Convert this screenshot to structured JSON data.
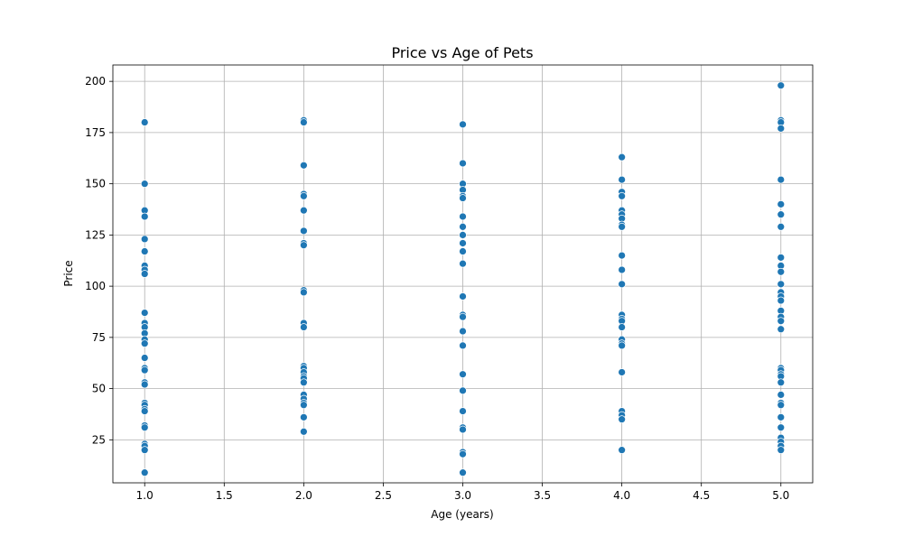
{
  "chart_data": {
    "type": "scatter",
    "title": "Price vs Age of Pets",
    "xlabel": "Age (years)",
    "ylabel": "Price",
    "xlim": [
      0.8,
      5.2
    ],
    "ylim": [
      4,
      208
    ],
    "xticks": [
      1.0,
      1.5,
      2.0,
      2.5,
      3.0,
      3.5,
      4.0,
      4.5,
      5.0
    ],
    "xtick_labels": [
      "1.0",
      "1.5",
      "2.0",
      "2.5",
      "3.0",
      "3.5",
      "4.0",
      "4.5",
      "5.0"
    ],
    "yticks": [
      25,
      50,
      75,
      100,
      125,
      150,
      175,
      200
    ],
    "ytick_labels": [
      "25",
      "50",
      "75",
      "100",
      "125",
      "150",
      "175",
      "200"
    ],
    "grid": true,
    "marker_color": "#1f77b4",
    "points": [
      {
        "x": 1,
        "y": 180
      },
      {
        "x": 1,
        "y": 150
      },
      {
        "x": 1,
        "y": 137
      },
      {
        "x": 1,
        "y": 134
      },
      {
        "x": 1,
        "y": 123
      },
      {
        "x": 1,
        "y": 117
      },
      {
        "x": 1,
        "y": 110
      },
      {
        "x": 1,
        "y": 108
      },
      {
        "x": 1,
        "y": 106
      },
      {
        "x": 1,
        "y": 87
      },
      {
        "x": 1,
        "y": 82
      },
      {
        "x": 1,
        "y": 80
      },
      {
        "x": 1,
        "y": 77
      },
      {
        "x": 1,
        "y": 74
      },
      {
        "x": 1,
        "y": 72
      },
      {
        "x": 1,
        "y": 65
      },
      {
        "x": 1,
        "y": 60
      },
      {
        "x": 1,
        "y": 59
      },
      {
        "x": 1,
        "y": 53
      },
      {
        "x": 1,
        "y": 52
      },
      {
        "x": 1,
        "y": 43
      },
      {
        "x": 1,
        "y": 42
      },
      {
        "x": 1,
        "y": 40
      },
      {
        "x": 1,
        "y": 39
      },
      {
        "x": 1,
        "y": 32
      },
      {
        "x": 1,
        "y": 31
      },
      {
        "x": 1,
        "y": 23
      },
      {
        "x": 1,
        "y": 22
      },
      {
        "x": 1,
        "y": 20
      },
      {
        "x": 1,
        "y": 9
      },
      {
        "x": 2,
        "y": 181
      },
      {
        "x": 2,
        "y": 180
      },
      {
        "x": 2,
        "y": 159
      },
      {
        "x": 2,
        "y": 145
      },
      {
        "x": 2,
        "y": 144
      },
      {
        "x": 2,
        "y": 137
      },
      {
        "x": 2,
        "y": 127
      },
      {
        "x": 2,
        "y": 121
      },
      {
        "x": 2,
        "y": 120
      },
      {
        "x": 2,
        "y": 98
      },
      {
        "x": 2,
        "y": 97
      },
      {
        "x": 2,
        "y": 82
      },
      {
        "x": 2,
        "y": 80
      },
      {
        "x": 2,
        "y": 61
      },
      {
        "x": 2,
        "y": 60
      },
      {
        "x": 2,
        "y": 58
      },
      {
        "x": 2,
        "y": 56
      },
      {
        "x": 2,
        "y": 55
      },
      {
        "x": 2,
        "y": 53
      },
      {
        "x": 2,
        "y": 47
      },
      {
        "x": 2,
        "y": 45
      },
      {
        "x": 2,
        "y": 43
      },
      {
        "x": 2,
        "y": 42
      },
      {
        "x": 2,
        "y": 36
      },
      {
        "x": 2,
        "y": 29
      },
      {
        "x": 3,
        "y": 179
      },
      {
        "x": 3,
        "y": 160
      },
      {
        "x": 3,
        "y": 150
      },
      {
        "x": 3,
        "y": 147
      },
      {
        "x": 3,
        "y": 144
      },
      {
        "x": 3,
        "y": 143
      },
      {
        "x": 3,
        "y": 134
      },
      {
        "x": 3,
        "y": 129
      },
      {
        "x": 3,
        "y": 125
      },
      {
        "x": 3,
        "y": 121
      },
      {
        "x": 3,
        "y": 117
      },
      {
        "x": 3,
        "y": 111
      },
      {
        "x": 3,
        "y": 95
      },
      {
        "x": 3,
        "y": 86
      },
      {
        "x": 3,
        "y": 85
      },
      {
        "x": 3,
        "y": 78
      },
      {
        "x": 3,
        "y": 71
      },
      {
        "x": 3,
        "y": 57
      },
      {
        "x": 3,
        "y": 49
      },
      {
        "x": 3,
        "y": 39
      },
      {
        "x": 3,
        "y": 31
      },
      {
        "x": 3,
        "y": 30
      },
      {
        "x": 3,
        "y": 19
      },
      {
        "x": 3,
        "y": 18
      },
      {
        "x": 3,
        "y": 9
      },
      {
        "x": 4,
        "y": 163
      },
      {
        "x": 4,
        "y": 152
      },
      {
        "x": 4,
        "y": 146
      },
      {
        "x": 4,
        "y": 144
      },
      {
        "x": 4,
        "y": 137
      },
      {
        "x": 4,
        "y": 135
      },
      {
        "x": 4,
        "y": 133
      },
      {
        "x": 4,
        "y": 130
      },
      {
        "x": 4,
        "y": 129
      },
      {
        "x": 4,
        "y": 115
      },
      {
        "x": 4,
        "y": 108
      },
      {
        "x": 4,
        "y": 101
      },
      {
        "x": 4,
        "y": 86
      },
      {
        "x": 4,
        "y": 84
      },
      {
        "x": 4,
        "y": 83
      },
      {
        "x": 4,
        "y": 80
      },
      {
        "x": 4,
        "y": 74
      },
      {
        "x": 4,
        "y": 72
      },
      {
        "x": 4,
        "y": 71
      },
      {
        "x": 4,
        "y": 58
      },
      {
        "x": 4,
        "y": 39
      },
      {
        "x": 4,
        "y": 37
      },
      {
        "x": 4,
        "y": 35
      },
      {
        "x": 4,
        "y": 20
      },
      {
        "x": 5,
        "y": 198
      },
      {
        "x": 5,
        "y": 181
      },
      {
        "x": 5,
        "y": 180
      },
      {
        "x": 5,
        "y": 177
      },
      {
        "x": 5,
        "y": 152
      },
      {
        "x": 5,
        "y": 140
      },
      {
        "x": 5,
        "y": 135
      },
      {
        "x": 5,
        "y": 129
      },
      {
        "x": 5,
        "y": 114
      },
      {
        "x": 5,
        "y": 110
      },
      {
        "x": 5,
        "y": 107
      },
      {
        "x": 5,
        "y": 101
      },
      {
        "x": 5,
        "y": 97
      },
      {
        "x": 5,
        "y": 95
      },
      {
        "x": 5,
        "y": 93
      },
      {
        "x": 5,
        "y": 88
      },
      {
        "x": 5,
        "y": 85
      },
      {
        "x": 5,
        "y": 83
      },
      {
        "x": 5,
        "y": 79
      },
      {
        "x": 5,
        "y": 60
      },
      {
        "x": 5,
        "y": 59
      },
      {
        "x": 5,
        "y": 57
      },
      {
        "x": 5,
        "y": 56
      },
      {
        "x": 5,
        "y": 53
      },
      {
        "x": 5,
        "y": 47
      },
      {
        "x": 5,
        "y": 43
      },
      {
        "x": 5,
        "y": 42
      },
      {
        "x": 5,
        "y": 36
      },
      {
        "x": 5,
        "y": 31
      },
      {
        "x": 5,
        "y": 26
      },
      {
        "x": 5,
        "y": 24
      },
      {
        "x": 5,
        "y": 22
      },
      {
        "x": 5,
        "y": 20
      }
    ]
  }
}
